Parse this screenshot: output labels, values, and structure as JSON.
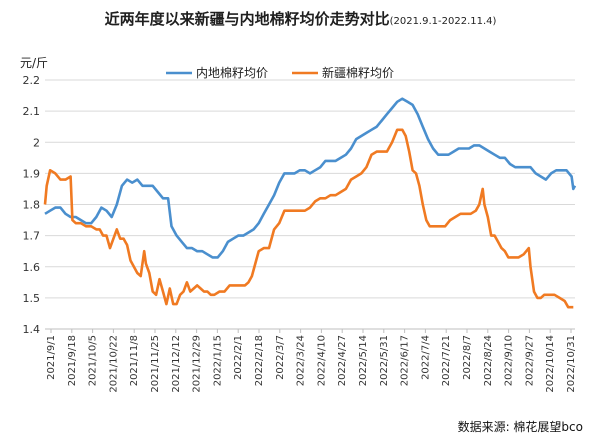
{
  "title": "近两年度以来新疆与内地棉籽均价走势对比",
  "subtitle": "(2021.9.1-2022.11.4)",
  "source": "数据来源: 棉花展望bco",
  "chart_data": {
    "type": "line",
    "ylabel": "元/斤",
    "ylim": [
      1.4,
      2.2
    ],
    "yticks": [
      "2.2",
      "2.1",
      "2",
      "1.9",
      "1.8",
      "1.7",
      "1.6",
      "1.5",
      "1.4"
    ],
    "x_tick_labels": [
      "2021/9/1",
      "2021/9/18",
      "2021/10/5",
      "2021/10/22",
      "2021/11/8",
      "2021/11/25",
      "2021/12/12",
      "2021/12/29",
      "2022/1/15",
      "2022/2/1",
      "2022/2/18",
      "2022/3/7",
      "2022/3/24",
      "2022/4/10",
      "2022/4/27",
      "2022/5/14",
      "2022/5/31",
      "2022/6/17",
      "2022/7/4",
      "2022/7/21",
      "2022/8/7",
      "2022/8/24",
      "2022/9/10",
      "2022/9/27",
      "2022/10/14",
      "2022/10/31"
    ],
    "legend_position": "top",
    "grid": "horizontal",
    "series": [
      {
        "name": "内地棉籽均价",
        "color": "#4a8fce",
        "points": [
          [
            0,
            1.77
          ],
          [
            3,
            1.78
          ],
          [
            6,
            1.79
          ],
          [
            9,
            1.79
          ],
          [
            12,
            1.77
          ],
          [
            15,
            1.76
          ],
          [
            18,
            1.76
          ],
          [
            21,
            1.75
          ],
          [
            24,
            1.74
          ],
          [
            27,
            1.74
          ],
          [
            30,
            1.76
          ],
          [
            33,
            1.79
          ],
          [
            36,
            1.78
          ],
          [
            39,
            1.76
          ],
          [
            42,
            1.8
          ],
          [
            45,
            1.86
          ],
          [
            48,
            1.88
          ],
          [
            51,
            1.87
          ],
          [
            54,
            1.88
          ],
          [
            57,
            1.86
          ],
          [
            60,
            1.86
          ],
          [
            63,
            1.86
          ],
          [
            66,
            1.84
          ],
          [
            69,
            1.82
          ],
          [
            72,
            1.82
          ],
          [
            74,
            1.73
          ],
          [
            77,
            1.7
          ],
          [
            80,
            1.68
          ],
          [
            83,
            1.66
          ],
          [
            86,
            1.66
          ],
          [
            89,
            1.65
          ],
          [
            92,
            1.65
          ],
          [
            95,
            1.64
          ],
          [
            98,
            1.63
          ],
          [
            101,
            1.63
          ],
          [
            104,
            1.65
          ],
          [
            107,
            1.68
          ],
          [
            110,
            1.69
          ],
          [
            113,
            1.7
          ],
          [
            116,
            1.7
          ],
          [
            119,
            1.71
          ],
          [
            122,
            1.72
          ],
          [
            125,
            1.74
          ],
          [
            128,
            1.77
          ],
          [
            131,
            1.8
          ],
          [
            134,
            1.83
          ],
          [
            137,
            1.87
          ],
          [
            140,
            1.9
          ],
          [
            143,
            1.9
          ],
          [
            146,
            1.9
          ],
          [
            149,
            1.91
          ],
          [
            152,
            1.91
          ],
          [
            155,
            1.9
          ],
          [
            158,
            1.91
          ],
          [
            161,
            1.92
          ],
          [
            164,
            1.94
          ],
          [
            167,
            1.94
          ],
          [
            170,
            1.94
          ],
          [
            173,
            1.95
          ],
          [
            176,
            1.96
          ],
          [
            179,
            1.98
          ],
          [
            182,
            2.01
          ],
          [
            185,
            2.02
          ],
          [
            188,
            2.03
          ],
          [
            191,
            2.04
          ],
          [
            194,
            2.05
          ],
          [
            197,
            2.07
          ],
          [
            200,
            2.09
          ],
          [
            203,
            2.11
          ],
          [
            206,
            2.13
          ],
          [
            209,
            2.14
          ],
          [
            212,
            2.13
          ],
          [
            215,
            2.12
          ],
          [
            218,
            2.09
          ],
          [
            221,
            2.05
          ],
          [
            224,
            2.01
          ],
          [
            227,
            1.98
          ],
          [
            230,
            1.96
          ],
          [
            233,
            1.96
          ],
          [
            236,
            1.96
          ],
          [
            239,
            1.97
          ],
          [
            242,
            1.98
          ],
          [
            245,
            1.98
          ],
          [
            248,
            1.98
          ],
          [
            251,
            1.99
          ],
          [
            254,
            1.99
          ],
          [
            257,
            1.98
          ],
          [
            260,
            1.97
          ],
          [
            263,
            1.96
          ],
          [
            266,
            1.95
          ],
          [
            269,
            1.95
          ],
          [
            272,
            1.93
          ],
          [
            275,
            1.92
          ],
          [
            278,
            1.92
          ],
          [
            281,
            1.92
          ],
          [
            284,
            1.92
          ],
          [
            287,
            1.9
          ],
          [
            290,
            1.89
          ],
          [
            293,
            1.88
          ],
          [
            296,
            1.9
          ],
          [
            299,
            1.91
          ],
          [
            302,
            1.91
          ],
          [
            305,
            1.91
          ],
          [
            308,
            1.89
          ],
          [
            309,
            1.85
          ],
          [
            310,
            1.86
          ]
        ]
      },
      {
        "name": "新疆棉籽均价",
        "color": "#f07a22",
        "points": [
          [
            0,
            1.8
          ],
          [
            1,
            1.86
          ],
          [
            3,
            1.91
          ],
          [
            6,
            1.9
          ],
          [
            9,
            1.88
          ],
          [
            12,
            1.88
          ],
          [
            15,
            1.89
          ],
          [
            16,
            1.75
          ],
          [
            18,
            1.74
          ],
          [
            21,
            1.74
          ],
          [
            24,
            1.73
          ],
          [
            27,
            1.73
          ],
          [
            30,
            1.72
          ],
          [
            32,
            1.72
          ],
          [
            34,
            1.7
          ],
          [
            36,
            1.7
          ],
          [
            38,
            1.66
          ],
          [
            40,
            1.69
          ],
          [
            42,
            1.72
          ],
          [
            44,
            1.69
          ],
          [
            46,
            1.69
          ],
          [
            48,
            1.67
          ],
          [
            50,
            1.62
          ],
          [
            52,
            1.6
          ],
          [
            54,
            1.58
          ],
          [
            56,
            1.57
          ],
          [
            58,
            1.65
          ],
          [
            59,
            1.61
          ],
          [
            61,
            1.58
          ],
          [
            63,
            1.52
          ],
          [
            65,
            1.51
          ],
          [
            67,
            1.56
          ],
          [
            69,
            1.52
          ],
          [
            71,
            1.48
          ],
          [
            73,
            1.53
          ],
          [
            75,
            1.48
          ],
          [
            77,
            1.48
          ],
          [
            79,
            1.51
          ],
          [
            81,
            1.52
          ],
          [
            83,
            1.55
          ],
          [
            85,
            1.52
          ],
          [
            87,
            1.53
          ],
          [
            89,
            1.54
          ],
          [
            91,
            1.53
          ],
          [
            93,
            1.52
          ],
          [
            95,
            1.52
          ],
          [
            97,
            1.51
          ],
          [
            99,
            1.51
          ],
          [
            102,
            1.52
          ],
          [
            105,
            1.52
          ],
          [
            108,
            1.54
          ],
          [
            111,
            1.54
          ],
          [
            114,
            1.54
          ],
          [
            117,
            1.54
          ],
          [
            119,
            1.55
          ],
          [
            121,
            1.57
          ],
          [
            123,
            1.61
          ],
          [
            125,
            1.65
          ],
          [
            128,
            1.66
          ],
          [
            131,
            1.66
          ],
          [
            134,
            1.72
          ],
          [
            137,
            1.74
          ],
          [
            140,
            1.78
          ],
          [
            143,
            1.78
          ],
          [
            146,
            1.78
          ],
          [
            149,
            1.78
          ],
          [
            152,
            1.78
          ],
          [
            155,
            1.79
          ],
          [
            158,
            1.81
          ],
          [
            161,
            1.82
          ],
          [
            164,
            1.82
          ],
          [
            167,
            1.83
          ],
          [
            170,
            1.83
          ],
          [
            173,
            1.84
          ],
          [
            176,
            1.85
          ],
          [
            179,
            1.88
          ],
          [
            182,
            1.89
          ],
          [
            185,
            1.9
          ],
          [
            188,
            1.92
          ],
          [
            191,
            1.96
          ],
          [
            194,
            1.97
          ],
          [
            197,
            1.97
          ],
          [
            200,
            1.97
          ],
          [
            203,
            2.0
          ],
          [
            206,
            2.04
          ],
          [
            209,
            2.04
          ],
          [
            211,
            2.02
          ],
          [
            213,
            1.97
          ],
          [
            215,
            1.91
          ],
          [
            217,
            1.9
          ],
          [
            219,
            1.86
          ],
          [
            221,
            1.8
          ],
          [
            223,
            1.75
          ],
          [
            225,
            1.73
          ],
          [
            228,
            1.73
          ],
          [
            231,
            1.73
          ],
          [
            234,
            1.73
          ],
          [
            237,
            1.75
          ],
          [
            240,
            1.76
          ],
          [
            243,
            1.77
          ],
          [
            246,
            1.77
          ],
          [
            249,
            1.77
          ],
          [
            252,
            1.78
          ],
          [
            254,
            1.8
          ],
          [
            256,
            1.85
          ],
          [
            257,
            1.8
          ],
          [
            259,
            1.76
          ],
          [
            261,
            1.7
          ],
          [
            263,
            1.7
          ],
          [
            265,
            1.68
          ],
          [
            267,
            1.66
          ],
          [
            269,
            1.65
          ],
          [
            271,
            1.63
          ],
          [
            274,
            1.63
          ],
          [
            277,
            1.63
          ],
          [
            280,
            1.64
          ],
          [
            283,
            1.66
          ],
          [
            284,
            1.6
          ],
          [
            286,
            1.52
          ],
          [
            288,
            1.5
          ],
          [
            290,
            1.5
          ],
          [
            292,
            1.51
          ],
          [
            295,
            1.51
          ],
          [
            298,
            1.51
          ],
          [
            301,
            1.5
          ],
          [
            304,
            1.49
          ],
          [
            306,
            1.47
          ],
          [
            308,
            1.47
          ],
          [
            309,
            1.47
          ]
        ]
      }
    ]
  }
}
